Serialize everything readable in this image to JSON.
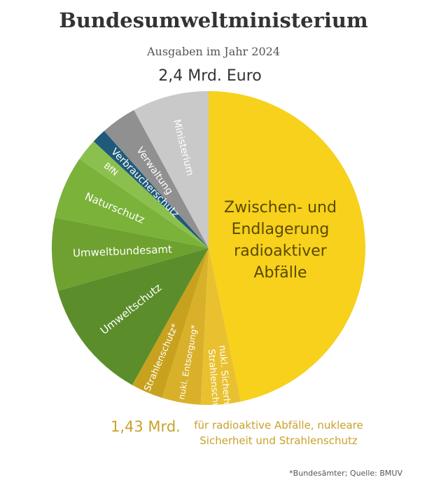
{
  "chart_data": {
    "type": "pie",
    "title": "Bundesumweltministerium",
    "subtitle": "Ausgaben im Jahr 2024",
    "total_label": "2,4 Mrd. Euro",
    "slices": [
      {
        "name": "Zwischen- und Endlagerung radioaktiver Abfälle",
        "label_lines": [
          "Zwischen- und",
          "Endlagerung",
          "radioaktiver",
          "Abfälle"
        ],
        "share": 46.7,
        "color": "#f7d11b",
        "text_color": "#5a4a00"
      },
      {
        "name": "nukl. Sicherheit/ Strahlenschutz",
        "label_lines": [
          "nukl. Sicherheit/",
          "Strahlenschutz"
        ],
        "share": 4.1,
        "color": "#e9c130",
        "text_color": "#ffffff"
      },
      {
        "name": "nukl. Entsorgung*",
        "label_lines": [
          "nukl. Entsorgung*"
        ],
        "share": 4.0,
        "color": "#d8b02a",
        "text_color": "#ffffff"
      },
      {
        "name": "Strahlenschutz*",
        "label_lines": [
          "Strahlenschutz*"
        ],
        "share": 3.3,
        "color": "#c8a21e",
        "text_color": "#ffffff"
      },
      {
        "name": "Umweltschutz",
        "label_lines": [
          "Umweltschutz"
        ],
        "share": 12.5,
        "color": "#5b8e2b",
        "text_color": "#ffffff"
      },
      {
        "name": "Umweltbundesamt",
        "label_lines": [
          "Umweltbundesamt"
        ],
        "share": 7.5,
        "color": "#6ea12f",
        "text_color": "#ffffff"
      },
      {
        "name": "Naturschutz",
        "label_lines": [
          "Naturschutz"
        ],
        "share": 6.5,
        "color": "#7ab23a",
        "text_color": "#ffffff"
      },
      {
        "name": "BfN",
        "label_lines": [
          "BfN"
        ],
        "share": 2.3,
        "color": "#8cc04e",
        "text_color": "#ffffff"
      },
      {
        "name": "Verbraucherschutz",
        "label_lines": [
          "Verbraucherschutz"
        ],
        "share": 1.5,
        "color": "#1f5a7a",
        "text_color": "#ffffff"
      },
      {
        "name": "Verwaltung",
        "label_lines": [
          "Verwaltung"
        ],
        "share": 3.7,
        "color": "#909090",
        "text_color": "#ffffff"
      },
      {
        "name": "Ministerium",
        "label_lines": [
          "Ministerium"
        ],
        "share": 7.9,
        "color": "#c9c9c9",
        "text_color": "#ffffff"
      }
    ],
    "summary": {
      "value": "1,43 Mrd.",
      "text_lines": [
        "für radioaktive Abfälle, nukleare",
        "Sicherheit und Strahlenschutz"
      ]
    },
    "footnote": "*Bundesämter; Quelle: BMUV"
  }
}
